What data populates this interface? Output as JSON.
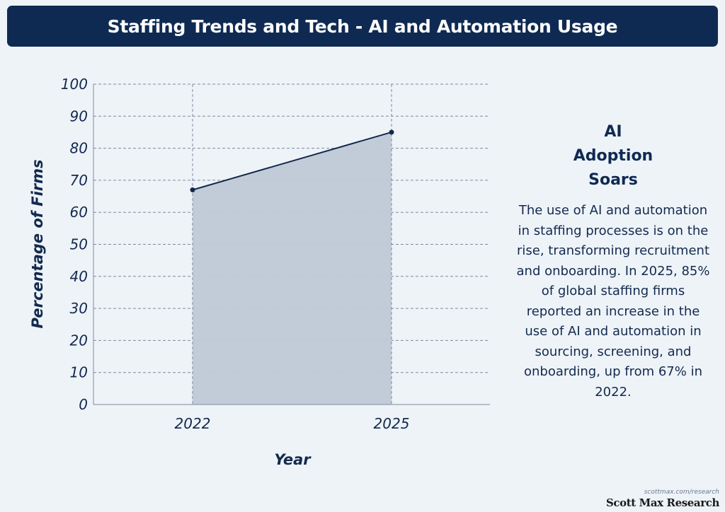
{
  "header": {
    "title": "Staffing Trends and Tech - AI and Automation Usage"
  },
  "chart_data": {
    "type": "area",
    "x": [
      "2022",
      "2025"
    ],
    "series": [
      {
        "values": [
          67,
          85
        ]
      }
    ],
    "xlabel": "Year",
    "ylabel": "Percentage of Firms",
    "ylim": [
      0,
      100
    ],
    "yticks": [
      0,
      10,
      20,
      30,
      40,
      50,
      60,
      70,
      80,
      90,
      100
    ],
    "grid": true,
    "colors": {
      "line": "#13294b",
      "fill": "#bfc9d6",
      "grid": "#7d8aa0",
      "axis": "#7d8aa0"
    }
  },
  "sidebar": {
    "heading": "AI Adoption Soars",
    "body": "The use of AI and automation in staffing processes is on the rise, transforming recruitment and onboarding. In 2025, 85% of global staffing firms reported an increase in the use of AI and automation in sourcing, screening, and onboarding, up from 67% in 2022."
  },
  "branding": {
    "url": "scottmax.com/research",
    "name": "Scott Max Research"
  }
}
